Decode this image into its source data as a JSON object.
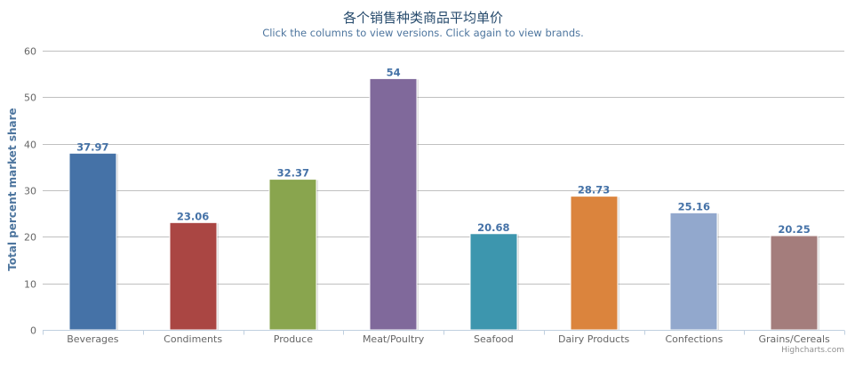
{
  "chart_data": {
    "type": "bar",
    "title": "各个销售种类商品平均单价",
    "subtitle": "Click the columns to view versions. Click again to view brands.",
    "xlabel": "",
    "ylabel": "Total percent market share",
    "ylim": [
      0,
      60
    ],
    "yticks": [
      0,
      10,
      20,
      30,
      40,
      50,
      60
    ],
    "grid": true,
    "legend": "none",
    "categories": [
      "Beverages",
      "Condiments",
      "Produce",
      "Meat/Poultry",
      "Seafood",
      "Dairy Products",
      "Confections",
      "Grains/Cereals"
    ],
    "values": [
      37.97,
      23.06,
      32.37,
      54,
      20.68,
      28.73,
      25.16,
      20.25
    ],
    "data_labels": [
      "37.97",
      "23.06",
      "32.37",
      "54",
      "20.68",
      "28.73",
      "25.16",
      "20.25"
    ],
    "colors": [
      "#4572a7",
      "#aa4643",
      "#89a54e",
      "#80699b",
      "#3d96ae",
      "#db843d",
      "#92a8cd",
      "#a47d7c"
    ],
    "label_color": "#4572a7",
    "grid_color": "#c0c0c0",
    "axis_color": "#c0d0e0"
  },
  "credits": "Highcharts.com"
}
